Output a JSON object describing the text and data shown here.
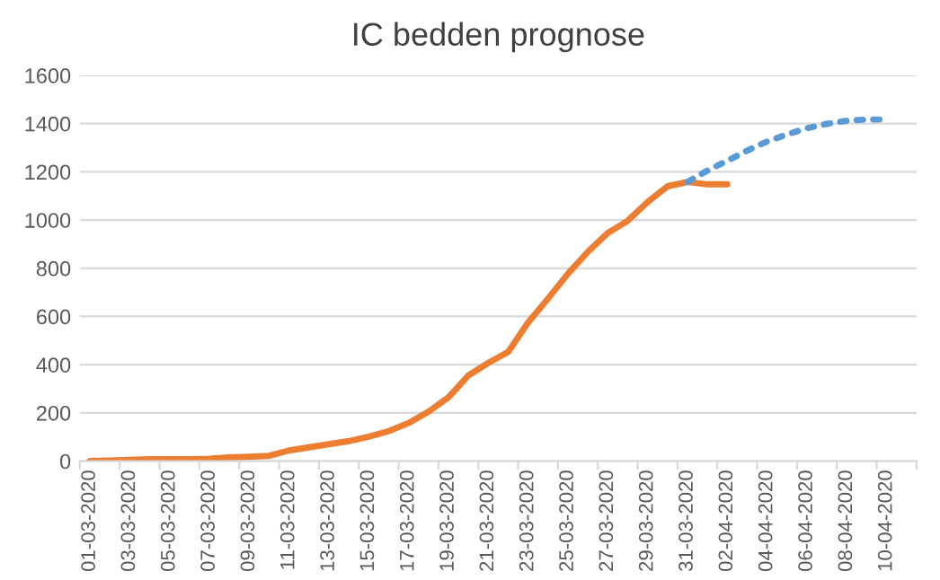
{
  "chart_data": {
    "type": "line",
    "title": "IC bedden prognose",
    "categories": [
      "01-03-2020",
      null,
      "03-03-2020",
      null,
      "05-03-2020",
      null,
      "07-03-2020",
      null,
      "09-03-2020",
      null,
      "11-03-2020",
      null,
      "13-03-2020",
      null,
      "15-03-2020",
      null,
      "17-03-2020",
      null,
      "19-03-2020",
      null,
      "21-03-2020",
      null,
      "23-03-2020",
      null,
      "25-03-2020",
      null,
      "27-03-2020",
      null,
      "29-03-2020",
      null,
      "31-03-2020",
      null,
      "02-04-2020",
      null,
      "04-04-2020",
      null,
      "06-04-2020",
      null,
      "08-04-2020",
      null,
      "10-04-2020",
      null
    ],
    "series": [
      {
        "color": "#ed7d31",
        "line_style": "solid",
        "values": [
          0,
          2,
          5,
          8,
          8,
          8,
          10,
          15,
          18,
          22,
          44,
          57,
          70,
          83,
          101,
          124,
          158,
          205,
          264,
          355,
          407,
          453,
          575,
          674,
          777,
          868,
          946,
          997,
          1075,
          1140,
          1158,
          1148,
          1148,
          null,
          null,
          null,
          null,
          null,
          null,
          null,
          null,
          null
        ]
      },
      {
        "color": "#5b9bd5",
        "line_style": "dotted",
        "values": [
          null,
          null,
          null,
          null,
          null,
          null,
          null,
          null,
          null,
          null,
          null,
          null,
          null,
          null,
          null,
          null,
          null,
          null,
          null,
          null,
          null,
          null,
          null,
          null,
          null,
          null,
          null,
          null,
          null,
          null,
          1158,
          1205,
          1246,
          1288,
          1326,
          1355,
          1381,
          1399,
          1412,
          1417,
          1417,
          null
        ]
      }
    ],
    "ylim": [
      0,
      1600
    ],
    "yticks": [
      0,
      200,
      400,
      600,
      800,
      1000,
      1200,
      1400,
      1600
    ],
    "grid": "y",
    "legend": false
  }
}
